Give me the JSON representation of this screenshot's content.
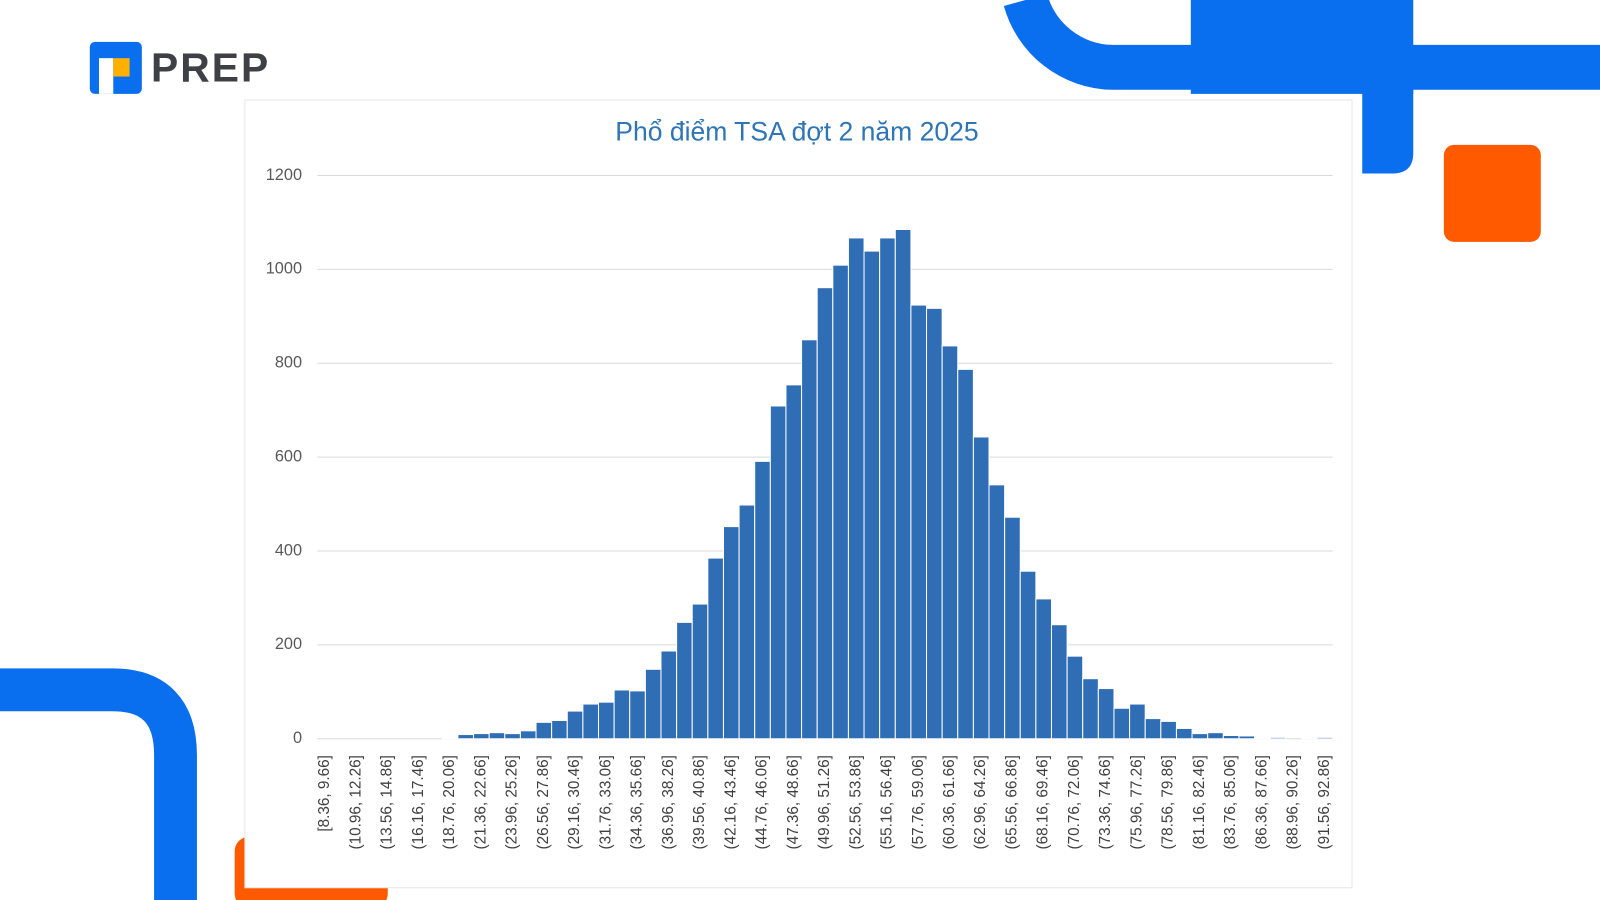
{
  "brand": "PREP",
  "chart_data": {
    "type": "bar",
    "title": "Phổ điểm TSA đợt 2 năm 2025",
    "color": "#2f6db5",
    "grid": true,
    "categories": [
      "[8.36, 9.66]",
      null,
      "(10.96, 12.26]",
      null,
      "(13.56, 14.86]",
      null,
      "(16.16, 17.46]",
      null,
      "(18.76, 20.06]",
      null,
      "(21.36, 22.66]",
      null,
      "(23.96, 25.26]",
      null,
      "(26.56, 27.86]",
      null,
      "(29.16, 30.46]",
      null,
      "(31.76, 33.06]",
      null,
      "(34.36, 35.66]",
      null,
      "(36.96, 38.26]",
      null,
      "(39.56, 40.86]",
      null,
      "(42.16, 43.46]",
      null,
      "(44.76, 46.06]",
      null,
      "(47.36, 48.66]",
      null,
      "(49.96, 51.26]",
      null,
      "(52.56, 53.86]",
      null,
      "(55.16, 56.46]",
      null,
      "(57.76, 59.06]",
      null,
      "(60.36, 61.66]",
      null,
      "(62.96, 64.26]",
      null,
      "(65.56, 66.86]",
      null,
      "(68.16, 69.46]",
      null,
      "(70.76, 72.06]",
      null,
      "(73.36, 74.66]",
      null,
      "(75.96, 77.26]",
      null,
      "(78.56, 79.86]",
      null,
      "(81.16, 82.46]",
      null,
      "(83.76, 85.06]",
      null,
      "(86.36, 87.66]",
      null,
      "(88.96, 90.26]",
      null,
      "(91.56, 92.86]"
    ],
    "values": [
      0,
      0,
      0,
      0,
      0,
      0,
      0,
      0,
      1,
      9,
      11,
      13,
      11,
      17,
      35,
      39,
      59,
      74,
      78,
      104,
      102,
      148,
      187,
      248,
      287,
      385,
      452,
      498,
      591,
      709,
      754,
      850,
      961,
      1009,
      1067,
      1039,
      1067,
      1085,
      924,
      917,
      837,
      787,
      643,
      541,
      472,
      357,
      298,
      243,
      176,
      128,
      107,
      65,
      74,
      43,
      37,
      22,
      11,
      13,
      7,
      6,
      1,
      3,
      0,
      1,
      3
    ],
    "ylim": [
      0,
      1200
    ],
    "yticks": [
      0,
      200,
      400,
      600,
      800,
      1000,
      1200
    ]
  }
}
